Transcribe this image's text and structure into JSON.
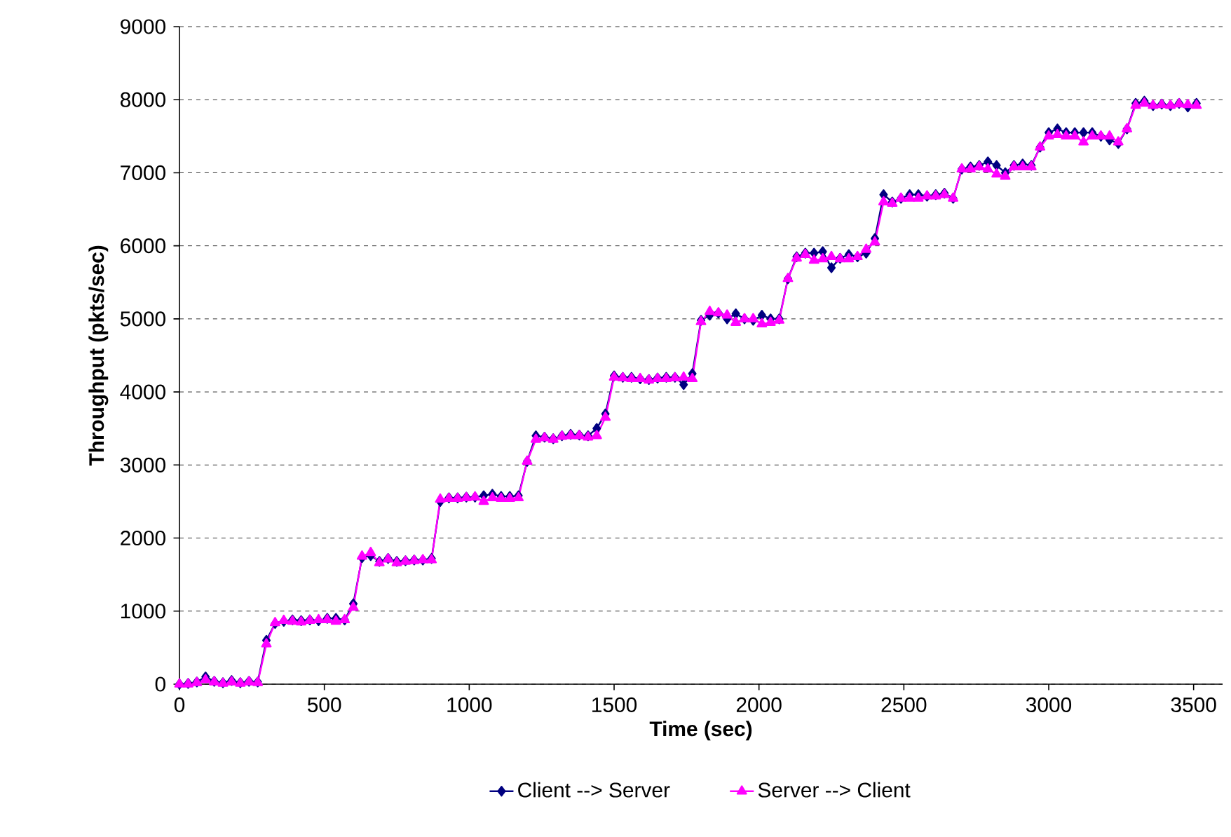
{
  "chart_data": {
    "type": "line",
    "xlabel": "Time (sec)",
    "ylabel": "Throughput (pkts/sec)",
    "x": [
      0,
      30,
      60,
      90,
      120,
      150,
      180,
      210,
      240,
      270,
      300,
      330,
      360,
      390,
      420,
      450,
      480,
      510,
      540,
      570,
      600,
      630,
      660,
      690,
      720,
      750,
      780,
      810,
      840,
      870,
      900,
      930,
      960,
      990,
      1020,
      1050,
      1080,
      1110,
      1140,
      1170,
      1200,
      1230,
      1260,
      1290,
      1320,
      1350,
      1380,
      1410,
      1440,
      1470,
      1500,
      1530,
      1560,
      1590,
      1620,
      1650,
      1680,
      1710,
      1740,
      1770,
      1800,
      1830,
      1860,
      1890,
      1920,
      1950,
      1980,
      2010,
      2040,
      2070,
      2100,
      2130,
      2160,
      2190,
      2220,
      2250,
      2280,
      2310,
      2340,
      2370,
      2400,
      2430,
      2460,
      2490,
      2520,
      2550,
      2580,
      2610,
      2640,
      2670,
      2700,
      2730,
      2760,
      2790,
      2820,
      2850,
      2880,
      2910,
      2940,
      2970,
      3000,
      3030,
      3060,
      3090,
      3120,
      3150,
      3180,
      3210,
      3240,
      3270,
      3300,
      3330,
      3360,
      3390,
      3420,
      3450,
      3480,
      3510
    ],
    "series": [
      {
        "name": "Client --> Server",
        "color": "#000080",
        "marker": "diamond",
        "values": [
          0,
          10,
          30,
          100,
          40,
          20,
          50,
          20,
          40,
          30,
          600,
          830,
          860,
          880,
          870,
          880,
          870,
          900,
          900,
          880,
          1100,
          1730,
          1760,
          1680,
          1720,
          1680,
          1690,
          1700,
          1700,
          1720,
          2500,
          2550,
          2550,
          2560,
          2560,
          2580,
          2600,
          2570,
          2570,
          2580,
          3050,
          3400,
          3380,
          3360,
          3400,
          3420,
          3410,
          3400,
          3500,
          3700,
          4220,
          4200,
          4200,
          4180,
          4170,
          4190,
          4200,
          4200,
          4100,
          4250,
          4980,
          5050,
          5080,
          5000,
          5070,
          5000,
          4980,
          5050,
          5000,
          5000,
          5550,
          5850,
          5900,
          5900,
          5920,
          5700,
          5830,
          5880,
          5850,
          5900,
          6100,
          6700,
          6600,
          6650,
          6700,
          6700,
          6680,
          6700,
          6720,
          6650,
          7050,
          7080,
          7100,
          7150,
          7100,
          7000,
          7100,
          7120,
          7100,
          7350,
          7550,
          7600,
          7550,
          7550,
          7550,
          7550,
          7500,
          7450,
          7400,
          7600,
          7950,
          7980,
          7920,
          7940,
          7920,
          7950,
          7900,
          7950
        ]
      },
      {
        "name": "Server --> Client",
        "color": "#ff00ff",
        "marker": "triangle",
        "values": [
          0,
          0,
          20,
          60,
          30,
          10,
          30,
          10,
          30,
          20,
          550,
          840,
          870,
          860,
          850,
          870,
          880,
          880,
          860,
          880,
          1050,
          1750,
          1800,
          1660,
          1710,
          1660,
          1680,
          1690,
          1700,
          1700,
          2530,
          2540,
          2540,
          2550,
          2560,
          2500,
          2550,
          2540,
          2540,
          2550,
          3050,
          3350,
          3370,
          3350,
          3390,
          3400,
          3400,
          3380,
          3400,
          3650,
          4200,
          4190,
          4180,
          4180,
          4160,
          4180,
          4180,
          4190,
          4200,
          4180,
          4960,
          5100,
          5080,
          5050,
          4950,
          5000,
          5000,
          4930,
          4950,
          4980,
          5550,
          5830,
          5880,
          5800,
          5820,
          5850,
          5820,
          5820,
          5850,
          5950,
          6050,
          6600,
          6580,
          6650,
          6650,
          6650,
          6680,
          6680,
          6700,
          6650,
          7050,
          7050,
          7080,
          7050,
          6980,
          6950,
          7080,
          7080,
          7080,
          7350,
          7500,
          7520,
          7500,
          7500,
          7420,
          7500,
          7500,
          7500,
          7420,
          7600,
          7920,
          7950,
          7920,
          7930,
          7920,
          7940,
          7930,
          7920
        ]
      }
    ],
    "xlim": [
      0,
      3600
    ],
    "ylim": [
      0,
      9000
    ],
    "xticks": [
      0,
      500,
      1000,
      1500,
      2000,
      2500,
      3000,
      3500
    ],
    "yticks": [
      0,
      1000,
      2000,
      3000,
      4000,
      5000,
      6000,
      7000,
      8000,
      9000
    ],
    "grid": "y",
    "legend": "bottom",
    "line_style": "solid"
  }
}
